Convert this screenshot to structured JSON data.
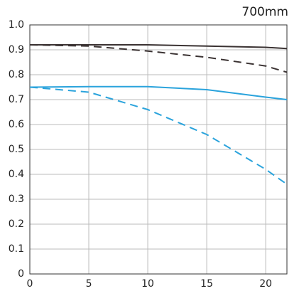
{
  "chart_data": {
    "type": "line",
    "title": "700mm",
    "x": [
      0,
      5,
      10,
      15,
      20,
      21.8
    ],
    "series": [
      {
        "color": "#3a3232",
        "dash": false,
        "values": [
          0.92,
          0.92,
          0.92,
          0.915,
          0.91,
          0.905
        ]
      },
      {
        "color": "#3a3232",
        "dash": true,
        "values": [
          0.92,
          0.915,
          0.895,
          0.87,
          0.835,
          0.81
        ]
      },
      {
        "color": "#2aa3dc",
        "dash": false,
        "values": [
          0.75,
          0.752,
          0.752,
          0.74,
          0.71,
          0.7
        ]
      },
      {
        "color": "#2aa3dc",
        "dash": true,
        "values": [
          0.75,
          0.73,
          0.66,
          0.56,
          0.42,
          0.36
        ]
      }
    ],
    "xlim": [
      0,
      21.8
    ],
    "xticks": [
      0,
      5,
      10,
      15,
      20
    ],
    "ylim": [
      0,
      1
    ],
    "yticks": [
      0,
      0.1,
      0.2,
      0.3,
      0.4,
      0.5,
      0.6,
      0.7,
      0.8,
      0.9,
      {
        "value": 1,
        "label": "1.0"
      }
    ],
    "grid": true
  }
}
